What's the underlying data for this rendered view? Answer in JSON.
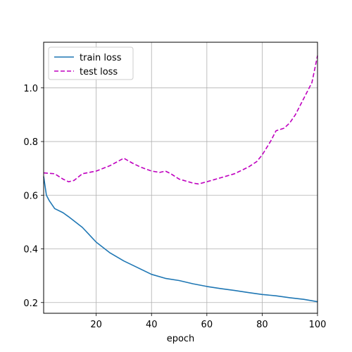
{
  "chart_data": {
    "type": "line",
    "title": "",
    "xlabel": "epoch",
    "ylabel": "",
    "xlim": [
      1,
      100
    ],
    "ylim": [
      0.16,
      1.17
    ],
    "xticks": [
      20,
      40,
      60,
      80,
      100
    ],
    "yticks": [
      0.2,
      0.4,
      0.6,
      0.8,
      1.0
    ],
    "xtick_labels": [
      "20",
      "40",
      "60",
      "80",
      "100"
    ],
    "ytick_labels": [
      "0.2",
      "0.4",
      "0.6",
      "0.8",
      "1.0"
    ],
    "grid": true,
    "legend_position": "top-left",
    "series": [
      {
        "name": "train loss",
        "color": "#1f77b4",
        "dash": "solid",
        "x": [
          1,
          2,
          3,
          5,
          8,
          10,
          15,
          20,
          25,
          30,
          35,
          40,
          45,
          50,
          55,
          60,
          65,
          70,
          75,
          80,
          85,
          90,
          95,
          100
        ],
        "y": [
          0.67,
          0.6,
          0.58,
          0.55,
          0.535,
          0.52,
          0.48,
          0.425,
          0.385,
          0.355,
          0.33,
          0.305,
          0.29,
          0.282,
          0.27,
          0.26,
          0.252,
          0.245,
          0.237,
          0.23,
          0.225,
          0.218,
          0.212,
          0.203
        ]
      },
      {
        "name": "test loss",
        "color": "#bf00bf",
        "dash": "dashed",
        "x": [
          1,
          5,
          8,
          10,
          12,
          15,
          20,
          25,
          30,
          33,
          36,
          40,
          43,
          45,
          47,
          50,
          55,
          57,
          60,
          65,
          70,
          75,
          78,
          80,
          83,
          85,
          88,
          90,
          92,
          95,
          97,
          98,
          100
        ],
        "y": [
          0.683,
          0.68,
          0.66,
          0.65,
          0.655,
          0.68,
          0.69,
          0.71,
          0.738,
          0.72,
          0.705,
          0.69,
          0.685,
          0.69,
          0.68,
          0.66,
          0.645,
          0.642,
          0.65,
          0.665,
          0.68,
          0.705,
          0.725,
          0.75,
          0.8,
          0.84,
          0.85,
          0.87,
          0.9,
          0.96,
          1.0,
          1.02,
          1.12
        ]
      }
    ]
  }
}
